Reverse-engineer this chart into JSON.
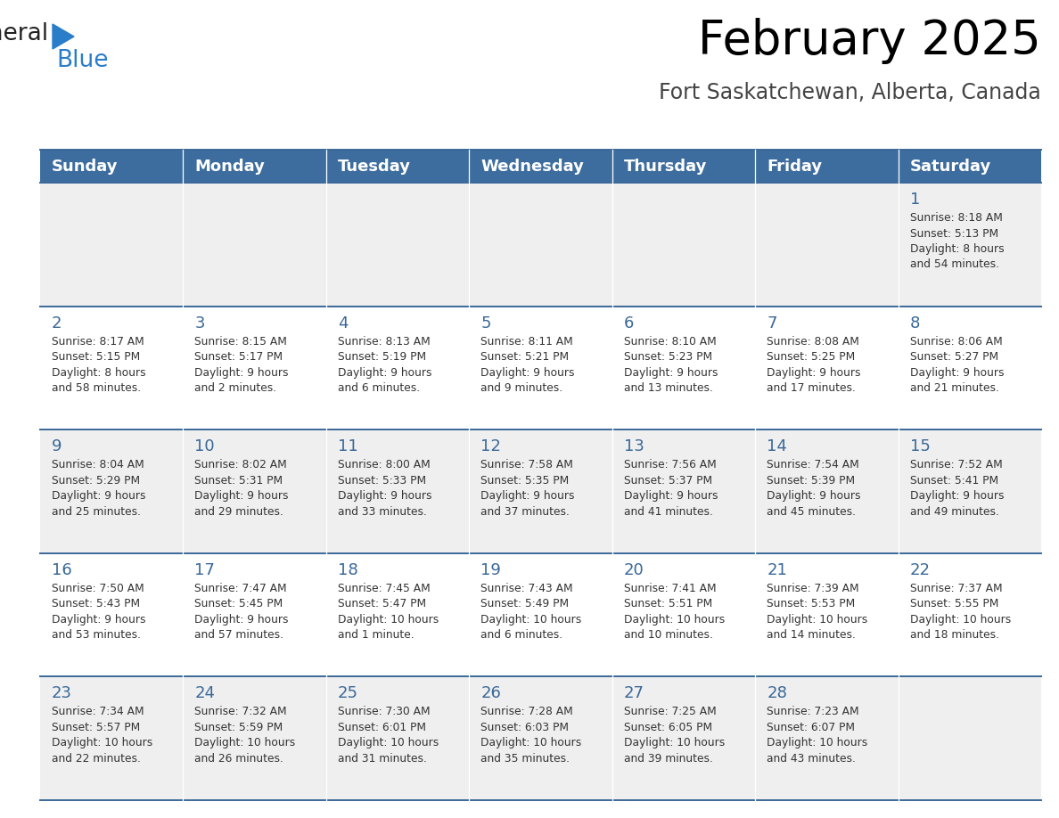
{
  "title": "February 2025",
  "subtitle": "Fort Saskatchewan, Alberta, Canada",
  "header_bg": "#3d6d9e",
  "header_text_color": "#ffffff",
  "day_names": [
    "Sunday",
    "Monday",
    "Tuesday",
    "Wednesday",
    "Thursday",
    "Friday",
    "Saturday"
  ],
  "row_bg_light": "#efefef",
  "row_bg_white": "#ffffff",
  "cell_border_color": "#3a6898",
  "text_color": "#333333",
  "day_num_color": "#3a6898",
  "logo_general_color": "#222222",
  "logo_blue_color": "#2a7dc9",
  "calendar": [
    [
      null,
      null,
      null,
      null,
      null,
      null,
      {
        "day": "1",
        "sunrise": "8:18 AM",
        "sunset": "5:13 PM",
        "daylight": "8 hours\nand 54 minutes."
      }
    ],
    [
      {
        "day": "2",
        "sunrise": "8:17 AM",
        "sunset": "5:15 PM",
        "daylight": "8 hours\nand 58 minutes."
      },
      {
        "day": "3",
        "sunrise": "8:15 AM",
        "sunset": "5:17 PM",
        "daylight": "9 hours\nand 2 minutes."
      },
      {
        "day": "4",
        "sunrise": "8:13 AM",
        "sunset": "5:19 PM",
        "daylight": "9 hours\nand 6 minutes."
      },
      {
        "day": "5",
        "sunrise": "8:11 AM",
        "sunset": "5:21 PM",
        "daylight": "9 hours\nand 9 minutes."
      },
      {
        "day": "6",
        "sunrise": "8:10 AM",
        "sunset": "5:23 PM",
        "daylight": "9 hours\nand 13 minutes."
      },
      {
        "day": "7",
        "sunrise": "8:08 AM",
        "sunset": "5:25 PM",
        "daylight": "9 hours\nand 17 minutes."
      },
      {
        "day": "8",
        "sunrise": "8:06 AM",
        "sunset": "5:27 PM",
        "daylight": "9 hours\nand 21 minutes."
      }
    ],
    [
      {
        "day": "9",
        "sunrise": "8:04 AM",
        "sunset": "5:29 PM",
        "daylight": "9 hours\nand 25 minutes."
      },
      {
        "day": "10",
        "sunrise": "8:02 AM",
        "sunset": "5:31 PM",
        "daylight": "9 hours\nand 29 minutes."
      },
      {
        "day": "11",
        "sunrise": "8:00 AM",
        "sunset": "5:33 PM",
        "daylight": "9 hours\nand 33 minutes."
      },
      {
        "day": "12",
        "sunrise": "7:58 AM",
        "sunset": "5:35 PM",
        "daylight": "9 hours\nand 37 minutes."
      },
      {
        "day": "13",
        "sunrise": "7:56 AM",
        "sunset": "5:37 PM",
        "daylight": "9 hours\nand 41 minutes."
      },
      {
        "day": "14",
        "sunrise": "7:54 AM",
        "sunset": "5:39 PM",
        "daylight": "9 hours\nand 45 minutes."
      },
      {
        "day": "15",
        "sunrise": "7:52 AM",
        "sunset": "5:41 PM",
        "daylight": "9 hours\nand 49 minutes."
      }
    ],
    [
      {
        "day": "16",
        "sunrise": "7:50 AM",
        "sunset": "5:43 PM",
        "daylight": "9 hours\nand 53 minutes."
      },
      {
        "day": "17",
        "sunrise": "7:47 AM",
        "sunset": "5:45 PM",
        "daylight": "9 hours\nand 57 minutes."
      },
      {
        "day": "18",
        "sunrise": "7:45 AM",
        "sunset": "5:47 PM",
        "daylight": "10 hours\nand 1 minute."
      },
      {
        "day": "19",
        "sunrise": "7:43 AM",
        "sunset": "5:49 PM",
        "daylight": "10 hours\nand 6 minutes."
      },
      {
        "day": "20",
        "sunrise": "7:41 AM",
        "sunset": "5:51 PM",
        "daylight": "10 hours\nand 10 minutes."
      },
      {
        "day": "21",
        "sunrise": "7:39 AM",
        "sunset": "5:53 PM",
        "daylight": "10 hours\nand 14 minutes."
      },
      {
        "day": "22",
        "sunrise": "7:37 AM",
        "sunset": "5:55 PM",
        "daylight": "10 hours\nand 18 minutes."
      }
    ],
    [
      {
        "day": "23",
        "sunrise": "7:34 AM",
        "sunset": "5:57 PM",
        "daylight": "10 hours\nand 22 minutes."
      },
      {
        "day": "24",
        "sunrise": "7:32 AM",
        "sunset": "5:59 PM",
        "daylight": "10 hours\nand 26 minutes."
      },
      {
        "day": "25",
        "sunrise": "7:30 AM",
        "sunset": "6:01 PM",
        "daylight": "10 hours\nand 31 minutes."
      },
      {
        "day": "26",
        "sunrise": "7:28 AM",
        "sunset": "6:03 PM",
        "daylight": "10 hours\nand 35 minutes."
      },
      {
        "day": "27",
        "sunrise": "7:25 AM",
        "sunset": "6:05 PM",
        "daylight": "10 hours\nand 39 minutes."
      },
      {
        "day": "28",
        "sunrise": "7:23 AM",
        "sunset": "6:07 PM",
        "daylight": "10 hours\nand 43 minutes."
      },
      null
    ]
  ]
}
